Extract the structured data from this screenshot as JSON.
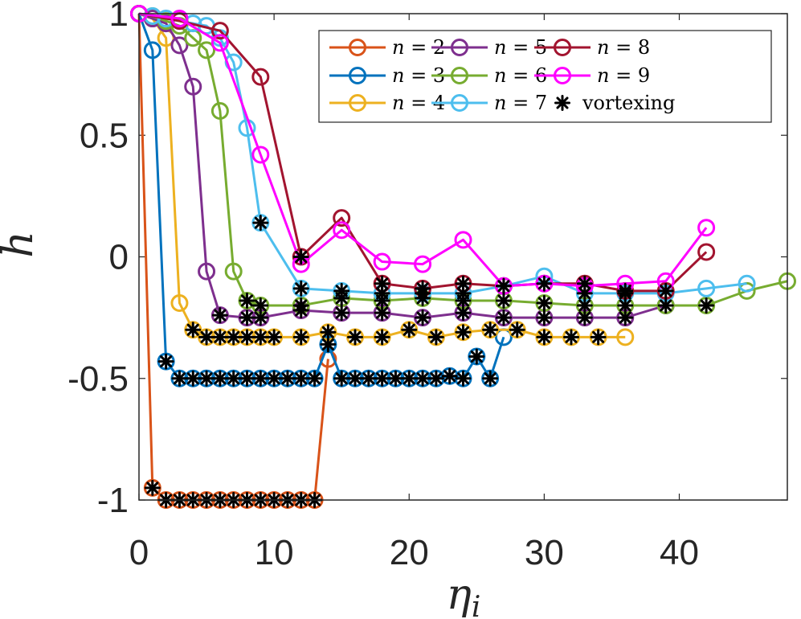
{
  "chart_data": {
    "type": "line",
    "xlabel": "η",
    "xlabel_sub": "i",
    "ylabel": "h",
    "xlim": [
      0,
      48
    ],
    "ylim": [
      -1,
      1
    ],
    "x_ticks": [
      0,
      10,
      20,
      30,
      40
    ],
    "x_tick_labels": [
      "0",
      "10",
      "20",
      "30",
      "40"
    ],
    "y_ticks": [
      1,
      0.5,
      0,
      -0.5,
      -1
    ],
    "y_tick_labels": [
      "1",
      "0.5",
      "0",
      "-0.5",
      "-1"
    ],
    "legend_position": "top-right",
    "vortex_label": "vortexing",
    "series": [
      {
        "name": "n = 2",
        "n_label": "n",
        "eq_label": "= 2",
        "color": "#d95319",
        "x": [
          0,
          1,
          2,
          3,
          4,
          5,
          6,
          7,
          8,
          9,
          10,
          11,
          12,
          13,
          14
        ],
        "y": [
          1,
          -0.95,
          -1,
          -1,
          -1,
          -1,
          -1,
          -1,
          -1,
          -1,
          -1,
          -1,
          -1,
          -1,
          -0.42
        ],
        "vortex": [
          false,
          true,
          true,
          true,
          true,
          true,
          true,
          true,
          true,
          true,
          true,
          true,
          true,
          true,
          false
        ]
      },
      {
        "name": "n = 3",
        "n_label": "n",
        "eq_label": "= 3",
        "color": "#0072bd",
        "x": [
          0,
          1,
          2,
          3,
          4,
          5,
          6,
          7,
          8,
          9,
          10,
          11,
          12,
          13,
          14,
          15,
          16,
          17,
          18,
          19,
          20,
          21,
          22,
          23,
          24,
          25,
          26,
          27
        ],
        "y": [
          1,
          0.85,
          -0.43,
          -0.5,
          -0.5,
          -0.5,
          -0.5,
          -0.5,
          -0.5,
          -0.5,
          -0.5,
          -0.5,
          -0.5,
          -0.5,
          -0.36,
          -0.5,
          -0.5,
          -0.5,
          -0.5,
          -0.5,
          -0.5,
          -0.5,
          -0.5,
          -0.49,
          -0.5,
          -0.41,
          -0.5,
          -0.33
        ],
        "vortex": [
          false,
          false,
          true,
          true,
          true,
          true,
          true,
          true,
          true,
          true,
          true,
          true,
          true,
          true,
          true,
          true,
          true,
          true,
          true,
          true,
          true,
          true,
          true,
          true,
          true,
          true,
          true,
          false
        ]
      },
      {
        "name": "n = 4",
        "n_label": "n",
        "eq_label": "= 4",
        "color": "#edb120",
        "x": [
          0,
          1,
          2,
          3,
          4,
          5,
          6,
          7,
          8,
          9,
          10,
          12,
          14,
          16,
          18,
          20,
          22,
          24,
          26,
          28,
          30,
          32,
          34,
          36
        ],
        "y": [
          1,
          0.98,
          0.9,
          -0.19,
          -0.3,
          -0.33,
          -0.33,
          -0.33,
          -0.33,
          -0.33,
          -0.33,
          -0.33,
          -0.31,
          -0.33,
          -0.33,
          -0.3,
          -0.33,
          -0.31,
          -0.3,
          -0.3,
          -0.33,
          -0.33,
          -0.33,
          -0.33
        ],
        "vortex": [
          false,
          false,
          false,
          false,
          true,
          true,
          true,
          true,
          true,
          true,
          true,
          true,
          true,
          true,
          true,
          true,
          true,
          true,
          true,
          true,
          true,
          true,
          true,
          false
        ]
      },
      {
        "name": "n = 5",
        "n_label": "n",
        "eq_label": "= 5",
        "color": "#7e2f8e",
        "x": [
          0,
          1,
          2,
          3,
          4,
          5,
          6,
          8,
          9,
          12,
          15,
          18,
          21,
          24,
          27,
          30,
          33,
          36,
          39
        ],
        "y": [
          1,
          0.98,
          0.96,
          0.87,
          0.7,
          -0.06,
          -0.24,
          -0.25,
          -0.25,
          -0.22,
          -0.23,
          -0.23,
          -0.25,
          -0.23,
          -0.25,
          -0.25,
          -0.25,
          -0.25,
          -0.2
        ],
        "vortex": [
          false,
          false,
          false,
          false,
          false,
          false,
          true,
          true,
          true,
          true,
          true,
          true,
          true,
          true,
          true,
          true,
          true,
          true,
          false
        ]
      },
      {
        "name": "n = 6",
        "n_label": "n",
        "eq_label": "= 6",
        "color": "#77ac30",
        "x": [
          0,
          1,
          2,
          3,
          4,
          5,
          6,
          7,
          8,
          9,
          12,
          15,
          18,
          21,
          24,
          27,
          30,
          33,
          36,
          39,
          42,
          45,
          48
        ],
        "y": [
          1,
          0.99,
          0.97,
          0.95,
          0.9,
          0.85,
          0.6,
          -0.06,
          -0.18,
          -0.2,
          -0.2,
          -0.17,
          -0.18,
          -0.17,
          -0.18,
          -0.18,
          -0.19,
          -0.2,
          -0.2,
          -0.2,
          -0.2,
          -0.14,
          -0.1
        ],
        "vortex": [
          false,
          false,
          false,
          false,
          false,
          false,
          false,
          false,
          true,
          true,
          true,
          true,
          true,
          true,
          true,
          true,
          true,
          true,
          true,
          true,
          true,
          false,
          false
        ]
      },
      {
        "name": "n = 7",
        "n_label": "n",
        "eq_label": "= 7",
        "color": "#4dbeee",
        "x": [
          0,
          1,
          2,
          3,
          4,
          5,
          6,
          7,
          8,
          9,
          12,
          15,
          18,
          21,
          24,
          27,
          30,
          33,
          36,
          39,
          42,
          45
        ],
        "y": [
          1,
          0.99,
          0.98,
          0.97,
          0.96,
          0.95,
          0.9,
          0.8,
          0.53,
          0.14,
          -0.13,
          -0.14,
          -0.15,
          -0.15,
          -0.15,
          -0.12,
          -0.08,
          -0.15,
          -0.15,
          -0.15,
          -0.13,
          -0.11
        ],
        "vortex": [
          false,
          false,
          false,
          false,
          false,
          false,
          false,
          false,
          false,
          true,
          true,
          true,
          true,
          true,
          true,
          true,
          false,
          true,
          true,
          false,
          false,
          false
        ]
      },
      {
        "name": "n = 8",
        "n_label": "n",
        "eq_label": "= 8",
        "color": "#a2142f",
        "x": [
          0,
          3,
          6,
          9,
          12,
          15,
          18,
          21,
          24,
          27,
          30,
          33,
          36,
          39,
          42
        ],
        "y": [
          1,
          0.97,
          0.93,
          0.74,
          0.0,
          0.16,
          -0.11,
          -0.13,
          -0.11,
          -0.12,
          -0.11,
          -0.11,
          -0.14,
          -0.14,
          0.02
        ],
        "vortex": [
          false,
          false,
          false,
          false,
          true,
          false,
          true,
          true,
          true,
          true,
          true,
          true,
          true,
          true,
          false
        ]
      },
      {
        "name": "n = 9",
        "n_label": "n",
        "eq_label": "= 9",
        "color": "#ff00ff",
        "x": [
          0,
          3,
          6,
          9,
          12,
          15,
          18,
          21,
          24,
          27,
          30,
          33,
          36,
          39,
          42
        ],
        "y": [
          1,
          0.98,
          0.88,
          0.42,
          -0.03,
          0.11,
          -0.02,
          -0.03,
          0.07,
          -0.12,
          -0.11,
          -0.12,
          -0.11,
          -0.1,
          0.12
        ],
        "vortex": [
          false,
          false,
          false,
          false,
          false,
          false,
          false,
          false,
          false,
          false,
          false,
          false,
          false,
          false,
          false
        ]
      }
    ]
  }
}
